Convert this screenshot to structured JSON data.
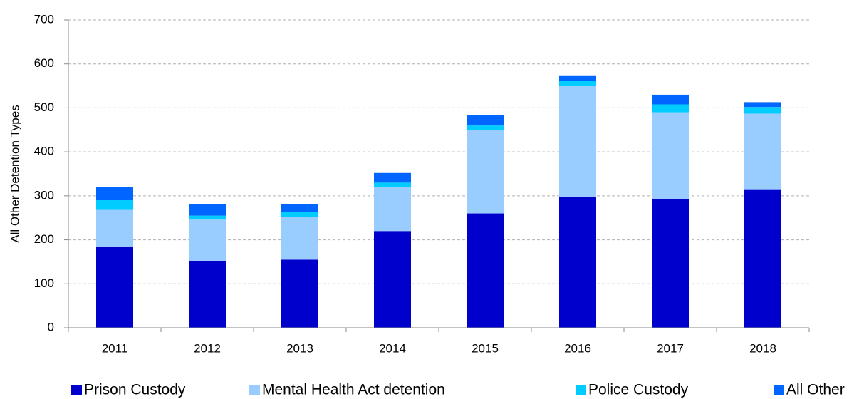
{
  "chart_data": {
    "type": "stacked_bar",
    "y_label": "All Other Detention Types",
    "categories": [
      "2011",
      "2012",
      "2013",
      "2014",
      "2015",
      "2016",
      "2017",
      "2018"
    ],
    "series": [
      {
        "name": "Prison Custody",
        "color": "#0000cc",
        "values": [
          185,
          152,
          155,
          220,
          260,
          298,
          292,
          315
        ]
      },
      {
        "name": "Mental Health Act detention",
        "color": "#99ccff",
        "values": [
          83,
          94,
          97,
          100,
          190,
          252,
          198,
          172
        ]
      },
      {
        "name": "Police Custody",
        "color": "#00ccff",
        "values": [
          22,
          9,
          12,
          10,
          10,
          12,
          18,
          15
        ]
      },
      {
        "name": "All Other",
        "color": "#0066ff",
        "values": [
          30,
          26,
          17,
          22,
          24,
          12,
          22,
          11
        ]
      }
    ],
    "ylim": [
      0,
      700
    ],
    "yticks": [
      0,
      100,
      200,
      300,
      400,
      500,
      600,
      700
    ],
    "grid": true,
    "legend": "bottom"
  }
}
